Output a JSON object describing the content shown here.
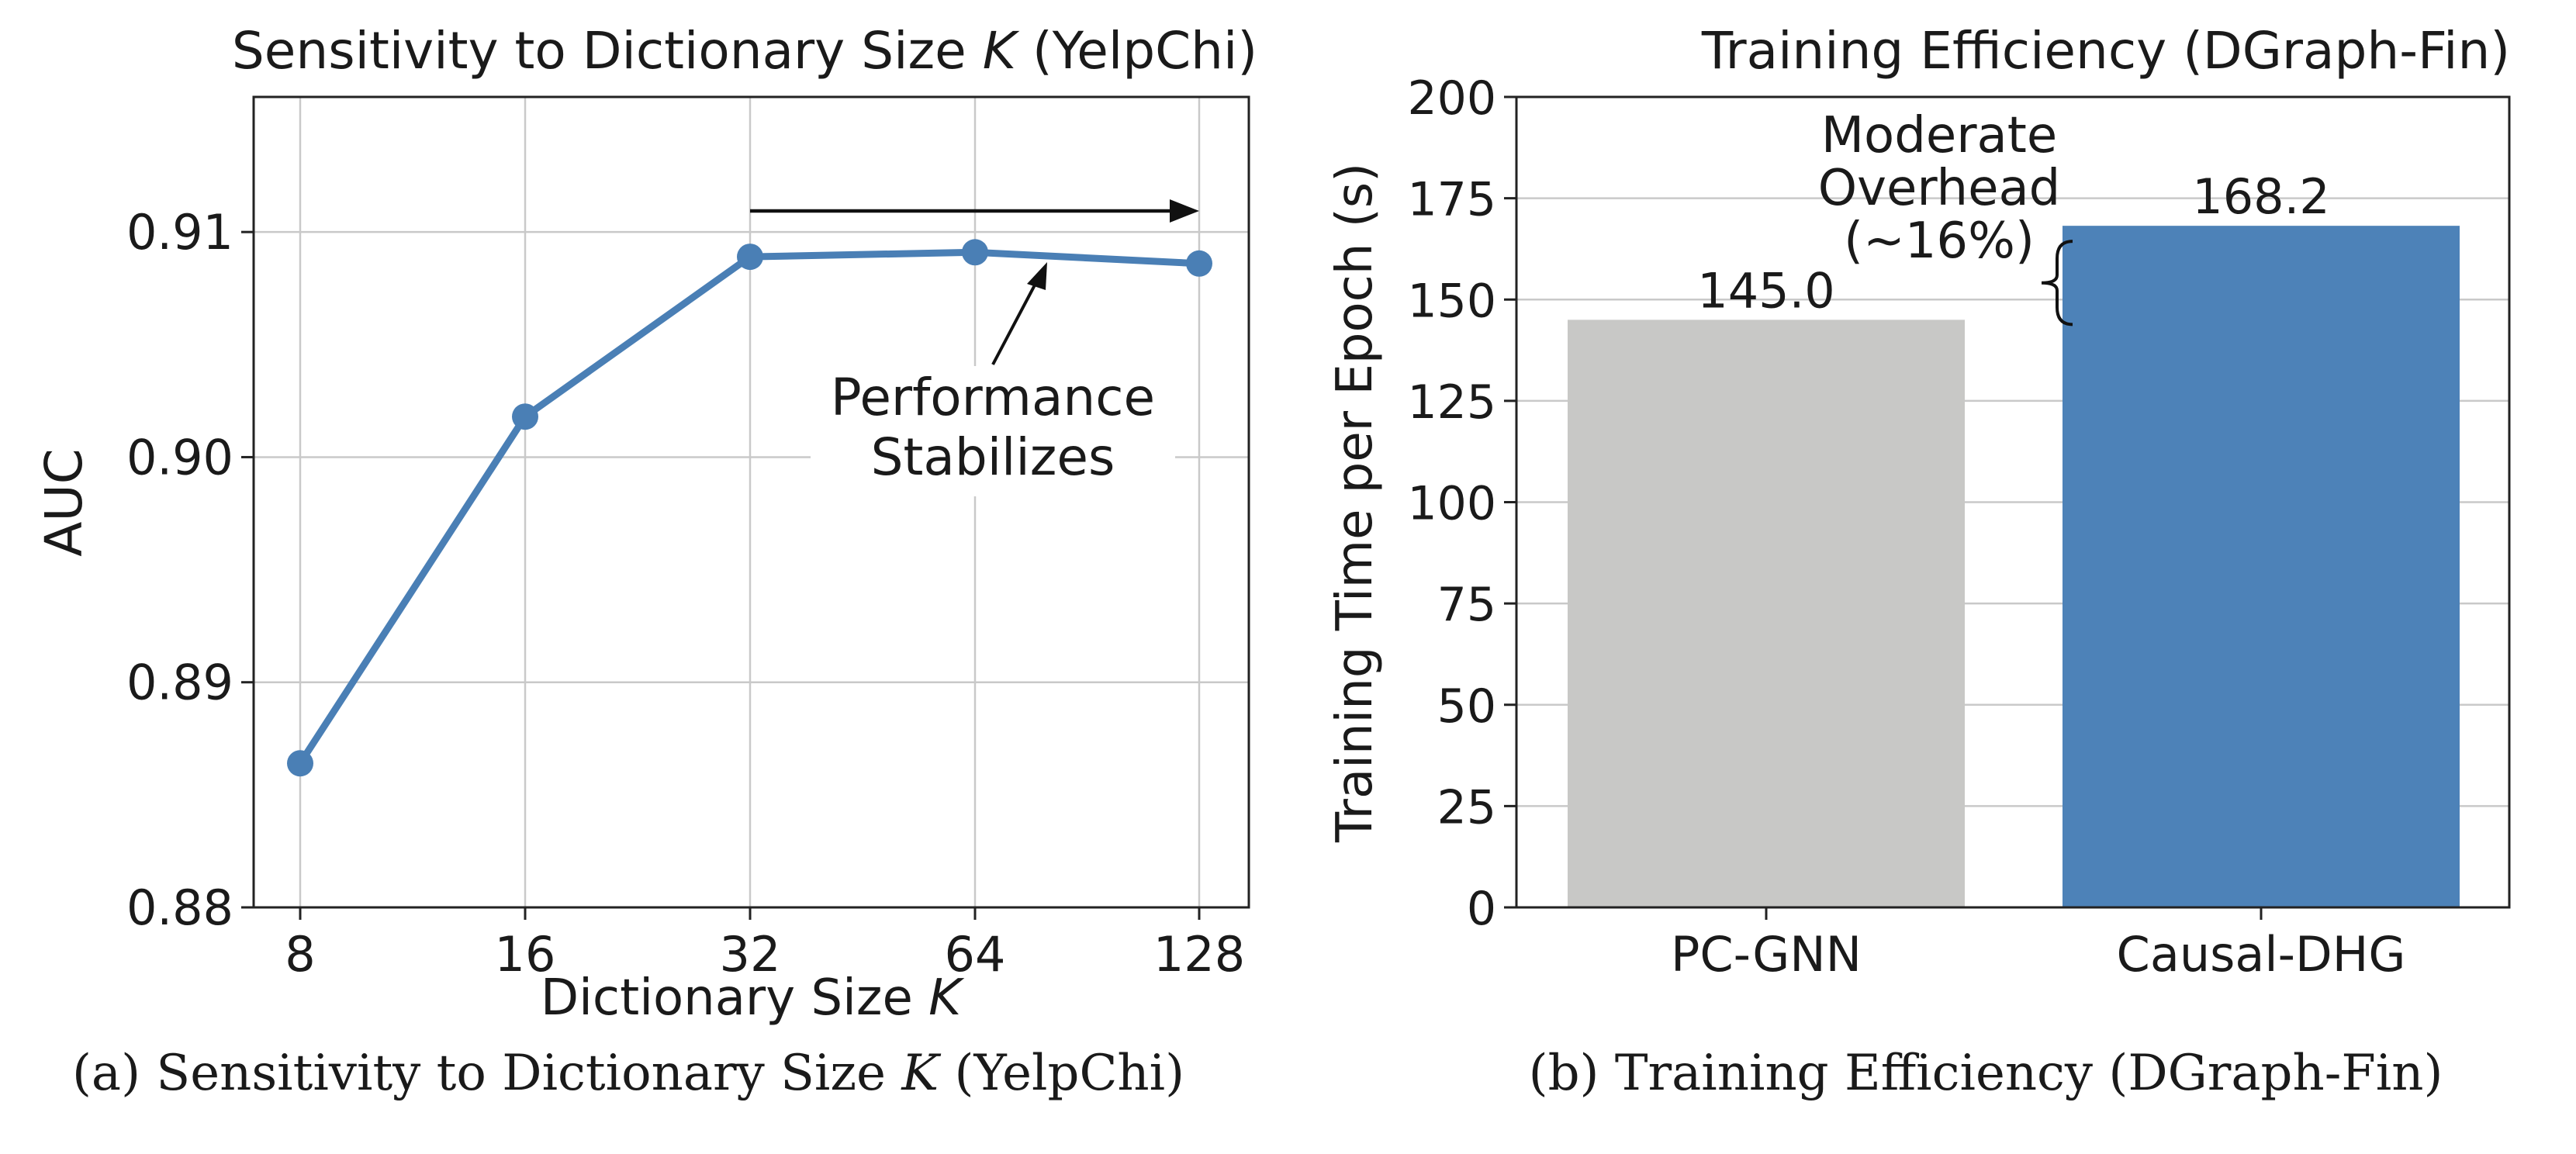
{
  "figures": [
    {
      "caption_prefix": "(a) Sensitivity to Dictionary Size",
      "caption_var": "K",
      "caption_suffix": "(YelpChi)"
    },
    {
      "caption": "(b) Training Efficiency (DGraph-Fin)"
    }
  ],
  "chart_data": [
    {
      "type": "line",
      "title_prefix": "Sensitivity to Dictionary Size",
      "title_var": "K",
      "title_suffix": "(YelpChi)",
      "xlabel_prefix": "Dictionary Size",
      "xlabel_var": "K",
      "ylabel": "AUC",
      "categories": [
        "8",
        "16",
        "32",
        "64",
        "128"
      ],
      "series": [
        {
          "name": "AUC",
          "values": [
            0.8864,
            0.9018,
            0.9089,
            0.9091,
            0.9086
          ],
          "color": "#4a7fb5"
        }
      ],
      "ylim": [
        0.88,
        0.916
      ],
      "yticks": [
        0.88,
        0.89,
        0.9,
        0.91
      ],
      "ytick_labels": [
        "0.88",
        "0.89",
        "0.90",
        "0.91"
      ],
      "grid": true,
      "annotations": [
        {
          "kind": "range-arrow",
          "from": "32",
          "to": "128"
        },
        {
          "kind": "text-arrow",
          "lines": [
            "Performance",
            "Stabilizes"
          ]
        }
      ]
    },
    {
      "type": "bar",
      "title": "Training Efficiency (DGraph-Fin)",
      "xlabel": "",
      "ylabel": "Training Time per Epoch (s)",
      "categories": [
        "PC-GNN",
        "Causal-DHG"
      ],
      "values": [
        145.0,
        168.2
      ],
      "data_labels": [
        "145.0",
        "168.2"
      ],
      "colors": [
        "#c8c8c6",
        "#4d82b8"
      ],
      "ylim": [
        0,
        200
      ],
      "yticks": [
        0,
        25,
        50,
        75,
        100,
        125,
        150,
        175,
        200
      ],
      "grid": true,
      "annotations": [
        {
          "kind": "brace",
          "lines": [
            "Moderate",
            "Overhead",
            "(~16%)"
          ]
        }
      ]
    }
  ]
}
